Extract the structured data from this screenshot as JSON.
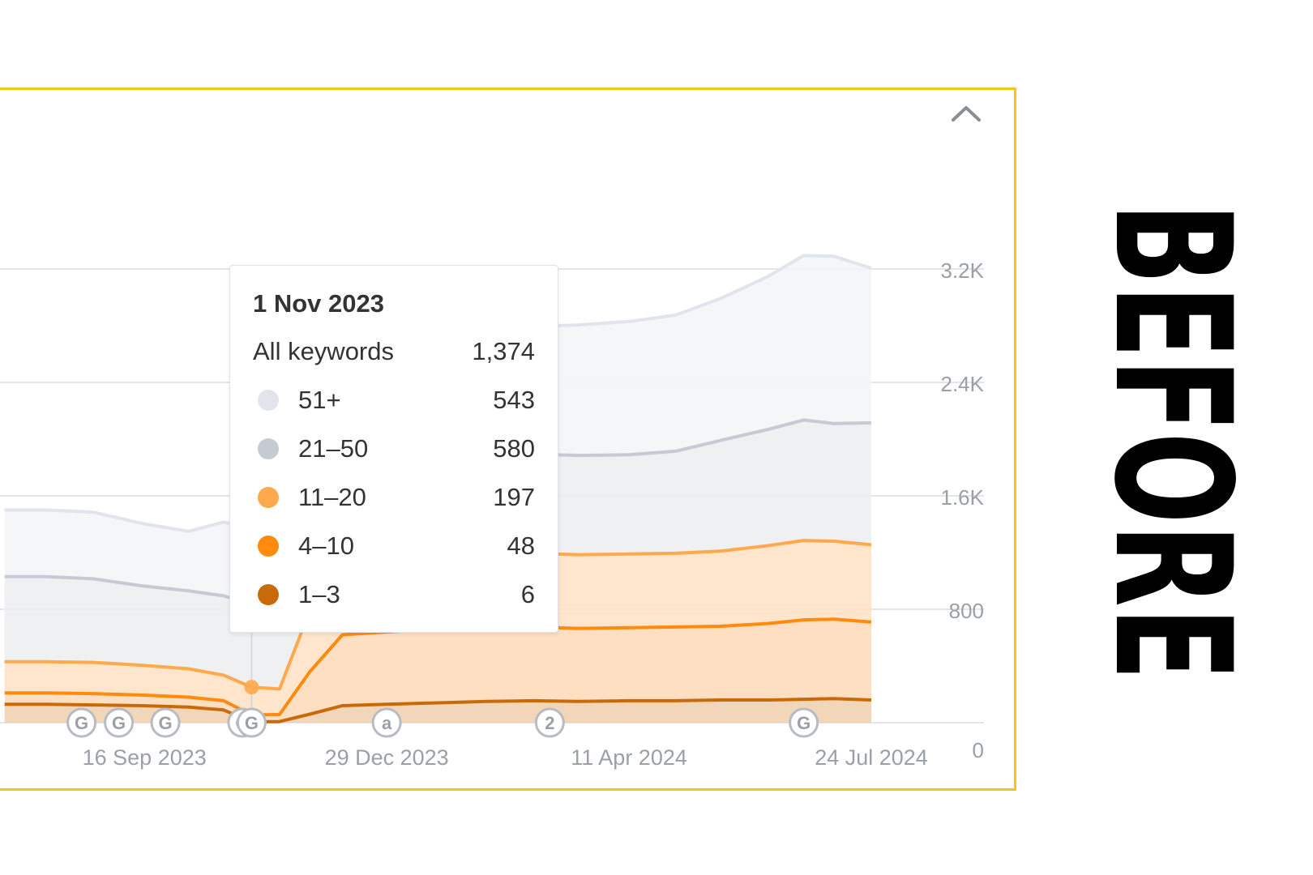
{
  "chart_data": {
    "type": "area",
    "stacked": true,
    "y_axis": {
      "position": "right",
      "ticks": [
        "3.2K",
        "2.4K",
        "1.6K",
        "800",
        "0"
      ],
      "tick_values": [
        3200,
        2400,
        1600,
        800,
        0
      ],
      "ylim": [
        0,
        3200
      ]
    },
    "x_axis": {
      "tick_labels": [
        "16 Sep 2023",
        "29 Dec 2023",
        "11 Apr 2024",
        "24 Jul 2024"
      ]
    },
    "grid": true,
    "x": [
      "2023-07-18",
      "2023-08-05",
      "2023-08-25",
      "2023-09-15",
      "2023-10-05",
      "2023-10-20",
      "2023-11-01",
      "2023-11-13",
      "2023-11-26",
      "2023-12-10",
      "2023-12-29",
      "2024-01-20",
      "2024-02-10",
      "2024-03-01",
      "2024-03-20",
      "2024-04-11",
      "2024-05-01",
      "2024-05-20",
      "2024-06-10",
      "2024-06-25",
      "2024-07-08",
      "2024-07-24"
    ],
    "series": [
      {
        "name": "1–3",
        "color": "#c96a0a",
        "values": [
          130,
          130,
          125,
          120,
          110,
          90,
          6,
          8,
          60,
          120,
          130,
          140,
          150,
          155,
          150,
          155,
          155,
          160,
          160,
          165,
          170,
          160
        ]
      },
      {
        "name": "4–10",
        "color": "#ff8a0d",
        "values": [
          80,
          80,
          80,
          75,
          70,
          65,
          48,
          50,
          300,
          500,
          510,
          520,
          520,
          520,
          515,
          515,
          520,
          520,
          540,
          560,
          560,
          550
        ]
      },
      {
        "name": "11–20",
        "color": "#ffa94d",
        "values": [
          220,
          220,
          220,
          210,
          200,
          180,
          197,
          180,
          430,
          500,
          510,
          510,
          520,
          520,
          520,
          520,
          520,
          530,
          550,
          560,
          550,
          545
        ]
      },
      {
        "name": "21–50",
        "color": "#c5cad3",
        "values": [
          600,
          600,
          590,
          560,
          550,
          560,
          580,
          580,
          600,
          700,
          720,
          720,
          720,
          700,
          700,
          700,
          720,
          780,
          820,
          850,
          830,
          860
        ]
      },
      {
        "name": "51+",
        "color": "#e1e4ea",
        "values": [
          470,
          470,
          470,
          440,
          420,
          520,
          543,
          550,
          570,
          700,
          820,
          880,
          890,
          900,
          920,
          940,
          960,
          1000,
          1080,
          1160,
          1180,
          1090
        ]
      }
    ],
    "tooltip": {
      "date": "1 Nov 2023",
      "total_label": "All keywords",
      "total_value": "1,374",
      "rows": [
        {
          "label": "51+",
          "value": "543",
          "color": "#e1e4ea"
        },
        {
          "label": "21–50",
          "value": "580",
          "color": "#c5cad3"
        },
        {
          "label": "11–20",
          "value": "197",
          "color": "#ffa94d"
        },
        {
          "label": "4–10",
          "value": "48",
          "color": "#ff8a0d"
        },
        {
          "label": "1–3",
          "value": "6",
          "color": "#c96a0a"
        }
      ]
    },
    "event_markers": [
      {
        "date": "2023-08-20",
        "label": "G"
      },
      {
        "date": "2023-09-05",
        "label": "G"
      },
      {
        "date": "2023-09-25",
        "label": "G"
      },
      {
        "date": "2023-10-28",
        "label": "G"
      },
      {
        "date": "2023-11-01",
        "label": "G"
      },
      {
        "date": "2023-12-29",
        "label": "a"
      },
      {
        "date": "2024-03-08",
        "label": "2"
      },
      {
        "date": "2024-06-25",
        "label": "G"
      }
    ]
  },
  "side_label": "BEFORE",
  "colors": {
    "frame": "#f5c518",
    "grid": "#e3e5e8",
    "axis_text": "#9aa0a6"
  },
  "icons": {
    "collapse": "chevron-up-icon"
  }
}
